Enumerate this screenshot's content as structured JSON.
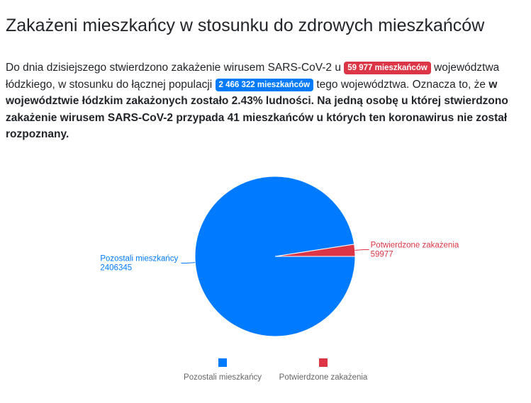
{
  "heading": "Zakażeni mieszkańcy w stosunku do zdrowych mieszkańców",
  "paragraph": {
    "part1": "Do dnia dzisiejszego stwierdzono zakażenie wirusem SARS-CoV-2 u ",
    "badge_infected": "59 977 mieszkańców",
    "part2": " województwa łódzkiego, w stosunku do łącznej populacji ",
    "badge_population": "2 466 322 mieszkańców",
    "part3": " tego województwa. Oznacza to, że ",
    "bold": "w województwie łódzkim zakażonych zostało 2.43% ludności. Na jedną osobę u której stwierdzono zakażenie wirusem SARS-CoV-2 przypada 41 mieszkańców u których ten koronawirus nie został rozpoznany."
  },
  "colors": {
    "remaining": "#007bff",
    "confirmed": "#dc3545"
  },
  "chart_data": {
    "type": "pie",
    "categories": [
      "Pozostali mieszkańcy",
      "Potwierdzone zakażenia"
    ],
    "values": [
      2406345,
      59977
    ],
    "value_labels": [
      "2406345",
      "59977"
    ],
    "legend": [
      "Pozostali mieszkańcy",
      "Potwierdzone zakażenia"
    ],
    "legend_position": "bottom"
  }
}
